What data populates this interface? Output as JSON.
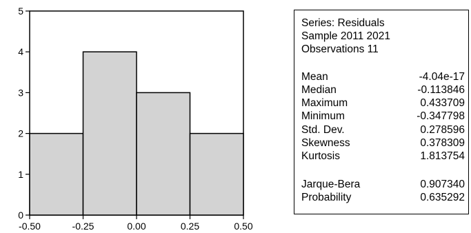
{
  "chart_data": {
    "type": "bar",
    "subtype": "histogram",
    "bins": [
      {
        "from": -0.5,
        "to": -0.25,
        "count": 2
      },
      {
        "from": -0.25,
        "to": 0.0,
        "count": 4
      },
      {
        "from": 0.0,
        "to": 0.25,
        "count": 3
      },
      {
        "from": 0.25,
        "to": 0.5,
        "count": 2
      }
    ],
    "x_ticks": [
      "-0.50",
      "-0.25",
      "0.00",
      "0.25",
      "0.50"
    ],
    "y_ticks": [
      "0",
      "1",
      "2",
      "3",
      "4",
      "5"
    ],
    "xlim": [
      -0.5,
      0.5
    ],
    "ylim": [
      0,
      5
    ],
    "grid": false,
    "bar_color": "#d3d3d3",
    "edge_color": "#000000"
  },
  "stats": {
    "header": [
      "Series: Residuals",
      "Sample 2011 2021",
      "Observations 11"
    ],
    "rows": [
      {
        "label": "Mean",
        "value": "-4.04e-17"
      },
      {
        "label": "Median",
        "value": "-0.113846"
      },
      {
        "label": "Maximum",
        "value": "0.433709"
      },
      {
        "label": "Minimum",
        "value": "-0.347798"
      },
      {
        "label": "Std. Dev.",
        "value": "0.278596"
      },
      {
        "label": "Skewness",
        "value": "0.378309"
      },
      {
        "label": "Kurtosis",
        "value": "1.813754"
      }
    ],
    "test_rows": [
      {
        "label": "Jarque-Bera",
        "value": "0.907340"
      },
      {
        "label": "Probability",
        "value": "0.635292"
      }
    ]
  }
}
